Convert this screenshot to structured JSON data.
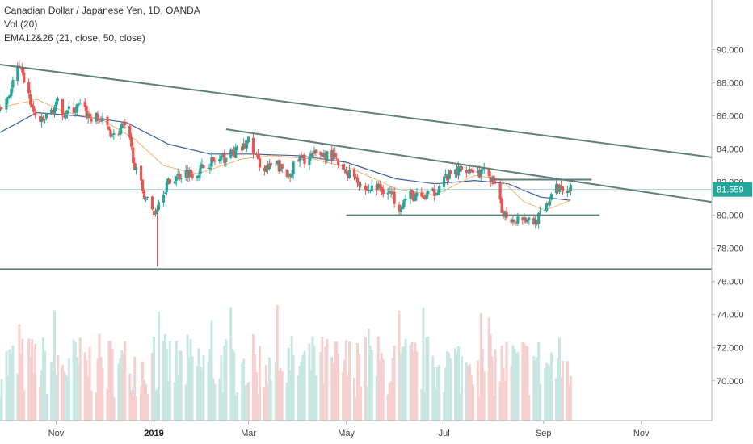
{
  "legend": {
    "title": "Canadian Dollar / Japanese Yen, 1D, OANDA",
    "volume": "Vol (20)",
    "ema": "EMA12&26 (21, close, 50, close)"
  },
  "chart_data": {
    "type": "candlestick",
    "title": "Canadian Dollar / Japanese Yen, 1D, OANDA",
    "ylim": [
      67.6,
      93.0
    ],
    "y_ticks": [
      70,
      72,
      74,
      76,
      78,
      80,
      82,
      84,
      86,
      88,
      90
    ],
    "y_tick_labels": [
      "70.000",
      "72.000",
      "74.000",
      "76.000",
      "78.000",
      "80.000",
      "82.000",
      "84.000",
      "86.000",
      "88.000",
      "90.000"
    ],
    "x_range": [
      "2018-09-27",
      "2019-12-15"
    ],
    "x_ticks": [
      {
        "date": "2018-11-01",
        "label": "Nov",
        "major": false
      },
      {
        "date": "2019-01-01",
        "label": "2019",
        "major": true
      },
      {
        "date": "2019-03-01",
        "label": "Mar",
        "major": false
      },
      {
        "date": "2019-05-01",
        "label": "May",
        "major": false
      },
      {
        "date": "2019-07-01",
        "label": "Jul",
        "major": false
      },
      {
        "date": "2019-09-01",
        "label": "Sep",
        "major": false
      },
      {
        "date": "2019-11-01",
        "label": "Nov",
        "major": false
      }
    ],
    "last_price": 81.559,
    "last_price_label": "81.559",
    "trendlines": [
      {
        "name": "long-term-resistance",
        "from": [
          "2018-09-27",
          89.1
        ],
        "to": [
          "2019-12-15",
          83.5
        ]
      },
      {
        "name": "mid-term-resistance",
        "from": [
          "2019-02-15",
          85.2
        ],
        "to": [
          "2019-12-15",
          80.8
        ]
      },
      {
        "name": "range-top",
        "from": [
          "2019-08-01",
          82.15
        ],
        "to": [
          "2019-10-01",
          82.15
        ]
      },
      {
        "name": "range-bottom",
        "from": [
          "2019-05-01",
          80.0
        ],
        "to": [
          "2019-10-06",
          80.0
        ]
      },
      {
        "name": "horizontal-support",
        "from": [
          "2018-09-27",
          76.75
        ],
        "to": [
          "2019-12-15",
          76.75
        ]
      }
    ],
    "price_path": [
      [
        "2018-09-27",
        86.3
      ],
      [
        "2018-10-03",
        87.4
      ],
      [
        "2018-10-08",
        88.9
      ],
      [
        "2018-10-12",
        88.2
      ],
      [
        "2018-10-18",
        86.1
      ],
      [
        "2018-10-23",
        85.6
      ],
      [
        "2018-10-29",
        86.3
      ],
      [
        "2018-11-02",
        86.7
      ],
      [
        "2018-11-06",
        86.2
      ],
      [
        "2018-11-12",
        86.4
      ],
      [
        "2018-11-16",
        86.6
      ],
      [
        "2018-11-22",
        85.9
      ],
      [
        "2018-11-28",
        85.8
      ],
      [
        "2018-12-03",
        85.3
      ],
      [
        "2018-12-07",
        84.8
      ],
      [
        "2018-12-13",
        85.4
      ],
      [
        "2018-12-17",
        84.4
      ],
      [
        "2018-12-21",
        82.6
      ],
      [
        "2018-12-26",
        81.3
      ],
      [
        "2019-01-01",
        80.1
      ],
      [
        "2019-01-07",
        81.6
      ],
      [
        "2019-01-14",
        82.3
      ],
      [
        "2019-01-21",
        82.6
      ],
      [
        "2019-01-28",
        82.6
      ],
      [
        "2019-02-04",
        83.2
      ],
      [
        "2019-02-11",
        83.3
      ],
      [
        "2019-02-18",
        83.7
      ],
      [
        "2019-02-25",
        84.0
      ],
      [
        "2019-03-01",
        84.5
      ],
      [
        "2019-03-07",
        83.2
      ],
      [
        "2019-03-13",
        82.8
      ],
      [
        "2019-03-19",
        83.0
      ],
      [
        "2019-03-25",
        82.4
      ],
      [
        "2019-04-01",
        83.3
      ],
      [
        "2019-04-08",
        83.5
      ],
      [
        "2019-04-15",
        83.7
      ],
      [
        "2019-04-22",
        83.6
      ],
      [
        "2019-04-29",
        82.6
      ],
      [
        "2019-05-06",
        82.5
      ],
      [
        "2019-05-13",
        81.5
      ],
      [
        "2019-05-20",
        81.7
      ],
      [
        "2019-05-27",
        81.5
      ],
      [
        "2019-06-03",
        80.6
      ],
      [
        "2019-06-10",
        81.2
      ],
      [
        "2019-06-17",
        81.0
      ],
      [
        "2019-06-24",
        81.3
      ],
      [
        "2019-07-01",
        82.2
      ],
      [
        "2019-07-08",
        82.6
      ],
      [
        "2019-07-15",
        82.9
      ],
      [
        "2019-07-22",
        82.6
      ],
      [
        "2019-07-29",
        82.5
      ],
      [
        "2019-08-02",
        81.6
      ],
      [
        "2019-08-06",
        80.3
      ],
      [
        "2019-08-12",
        79.8
      ],
      [
        "2019-08-19",
        79.9
      ],
      [
        "2019-08-26",
        79.6
      ],
      [
        "2019-09-02",
        80.2
      ],
      [
        "2019-09-06",
        81.3
      ],
      [
        "2019-09-12",
        81.8
      ],
      [
        "2019-09-18",
        81.56
      ]
    ],
    "ema_fast_path": [
      [
        "2018-09-27",
        86.5
      ],
      [
        "2018-10-20",
        87.0
      ],
      [
        "2018-11-05",
        86.3
      ],
      [
        "2018-12-01",
        85.7
      ],
      [
        "2018-12-20",
        84.6
      ],
      [
        "2019-01-07",
        83.0
      ],
      [
        "2019-01-28",
        82.5
      ],
      [
        "2019-02-25",
        83.4
      ],
      [
        "2019-03-15",
        83.6
      ],
      [
        "2019-04-10",
        83.4
      ],
      [
        "2019-05-05",
        82.8
      ],
      [
        "2019-06-01",
        81.6
      ],
      [
        "2019-06-25",
        81.2
      ],
      [
        "2019-07-20",
        82.4
      ],
      [
        "2019-08-05",
        82.2
      ],
      [
        "2019-08-20",
        80.8
      ],
      [
        "2019-09-02",
        80.3
      ],
      [
        "2019-09-18",
        80.9
      ]
    ],
    "ema_slow_path": [
      [
        "2018-09-27",
        85.0
      ],
      [
        "2018-10-20",
        86.2
      ],
      [
        "2018-11-15",
        86.0
      ],
      [
        "2018-12-15",
        85.6
      ],
      [
        "2019-01-10",
        84.3
      ],
      [
        "2019-02-05",
        83.7
      ],
      [
        "2019-03-01",
        83.7
      ],
      [
        "2019-04-01",
        83.6
      ],
      [
        "2019-05-01",
        83.2
      ],
      [
        "2019-06-01",
        82.2
      ],
      [
        "2019-06-25",
        81.9
      ],
      [
        "2019-07-20",
        82.1
      ],
      [
        "2019-08-10",
        81.9
      ],
      [
        "2019-08-30",
        81.1
      ],
      [
        "2019-09-18",
        80.9
      ]
    ],
    "volume": {
      "min": 0,
      "max": 100,
      "baseline": 67.6,
      "top": 74.6
    }
  },
  "colors": {
    "up": "#26a69a",
    "down": "#ef5350",
    "trendline": "#5f7f7b",
    "ema_fast": "#f6b26b",
    "ema_slow": "#3c5fa0",
    "price_badge": "#26a69a",
    "last_price_line": "#a8d6cc",
    "axis": "#b2b5be",
    "grid": "#f0f3fa"
  }
}
